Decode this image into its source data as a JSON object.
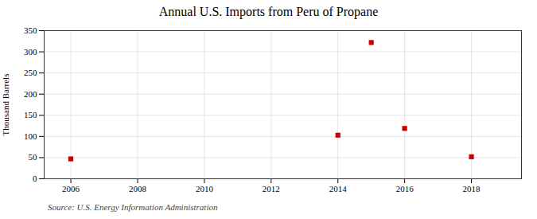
{
  "chart_data": {
    "type": "scatter",
    "title": "Annual U.S. Imports from Peru of Propane",
    "ylabel": "Thousand Barrels",
    "source": "Source: U.S. Energy Information Administration",
    "x": [
      2006,
      2014,
      2015,
      2016,
      2018
    ],
    "values": [
      47,
      103,
      322,
      119,
      52
    ],
    "color": "#cc0000",
    "marker": "square",
    "xlim": [
      2005.2,
      2019.5
    ],
    "xticks": [
      2006,
      2008,
      2010,
      2012,
      2014,
      2016,
      2018
    ],
    "ylim": [
      0,
      350
    ],
    "yticks": [
      0,
      50,
      100,
      150,
      200,
      250,
      300,
      350
    ],
    "grid": true
  }
}
